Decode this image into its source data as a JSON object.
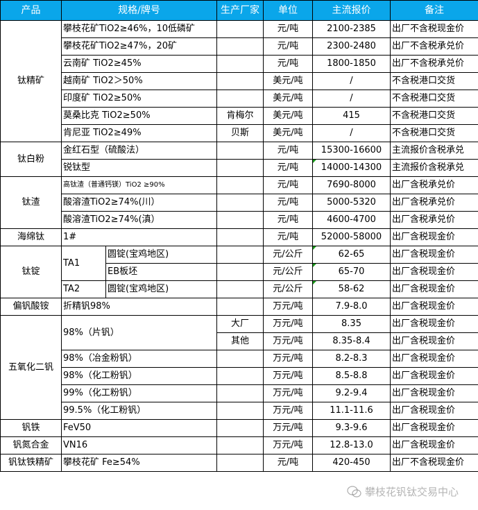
{
  "header": [
    "产品",
    "规格/牌号",
    "生产厂家",
    "单位",
    "主流报价",
    "备注"
  ],
  "header_color": "#0aa6ea",
  "groups": [
    {
      "product": "钛精矿",
      "rows": [
        {
          "spec": "攀枝花矿TiO2≥46%，10低磷矿",
          "maker": "",
          "unit": "元/吨",
          "price": "2100-2385",
          "note": "出厂不含税现金价"
        },
        {
          "spec": "攀枝花矿TiO2≥47%，20矿",
          "maker": "",
          "unit": "元/吨",
          "price": "2300-2480",
          "note": "出厂不含税承兑价"
        },
        {
          "spec": "云南矿 TiO2≥45%",
          "maker": "",
          "unit": "元/吨",
          "price": "1800-1850",
          "note": "出厂不含税承兑价"
        },
        {
          "spec": "越南矿 TiO2＞50%",
          "maker": "",
          "unit": "美元/吨",
          "price": "/",
          "note": "不含税港口交货"
        },
        {
          "spec": "印度矿 TiO2≥50%",
          "maker": "",
          "unit": "美元/吨",
          "price": "/",
          "note": "不含税港口交货"
        },
        {
          "spec": "莫桑比克 TiO2≥50%",
          "maker": "肯梅尔",
          "unit": "美元/吨",
          "price": "415",
          "note": "不含税港口交货"
        },
        {
          "spec": "肯尼亚 TiO2≥49%",
          "maker": "贝斯",
          "unit": "美元/吨",
          "price": "/",
          "note": "不含税港口交货"
        }
      ]
    },
    {
      "product": "钛白粉",
      "rows": [
        {
          "spec": "金红石型（硫酸法）",
          "maker": "",
          "unit": "元/吨",
          "price": "15300-16600",
          "note": "主流报价含税承兑"
        },
        {
          "spec": "锐钛型",
          "maker": "",
          "unit": "元/吨",
          "price": "14000-14300",
          "note": "主流报价含税承兑",
          "mark": true
        }
      ]
    },
    {
      "product": "钛渣",
      "rows": [
        {
          "spec": "高钛渣（普通钙镁）TiO2 ≥90%",
          "small": true,
          "maker": "",
          "unit": "元/吨",
          "price": "7690-8000",
          "note": "出厂含税承兑价"
        },
        {
          "spec": "酸溶渣TiO2≥74%(川）",
          "maker": "",
          "unit": "元/吨",
          "price": "5000-5320",
          "note": "出厂含税承兑价"
        },
        {
          "spec": "酸溶渣TiO2≥74%(滇）",
          "maker": "",
          "unit": "元/吨",
          "price": "4600-4700",
          "note": "出厂含税承兑价"
        }
      ]
    },
    {
      "product": "海绵钛",
      "rows": [
        {
          "spec": "1#",
          "maker": "",
          "unit": "元/吨",
          "price": "52000-58000",
          "note": "出厂含税现金价"
        }
      ]
    },
    {
      "product": "钛锭",
      "rows": [
        {
          "spec": "TA1",
          "sub": "圆锭(宝鸡地区)",
          "maker": "",
          "unit": "元/公斤",
          "price": "62-65",
          "note": "出厂含税现金价",
          "mark": true
        },
        {
          "spec": "TA1",
          "sub": "EB板坯",
          "maker": "",
          "unit": "元/公斤",
          "price": "65-70",
          "note": "出厂含税现金价",
          "mark": true
        },
        {
          "spec": "TA2",
          "sub": "圆锭(宝鸡地区)",
          "maker": "",
          "unit": "元/公斤",
          "price": "58-62",
          "note": "出厂含税现金价",
          "mark": true
        }
      ]
    },
    {
      "product": "偏钒酸铵",
      "rows": [
        {
          "spec": "折精钒98%",
          "maker": "",
          "unit": "万元/吨",
          "price": "7.9-8.0",
          "note": "出厂含税现金价"
        }
      ]
    },
    {
      "product": "五氧化二钒",
      "rows": [
        {
          "spec": "98%（片钒）",
          "maker": "大厂",
          "unit": "万元/吨",
          "price": "8.35",
          "note": "出厂含税现金价"
        },
        {
          "spec": "98%（片钒）",
          "maker": "其他",
          "unit": "万元/吨",
          "price": "8.35-8.4",
          "note": "出厂含税现金价"
        },
        {
          "spec": "98%（冶金粉钒）",
          "maker": "",
          "unit": "万元/吨",
          "price": "8.2-8.3",
          "note": "出厂含税现金价"
        },
        {
          "spec": "98%（化工粉钒）",
          "maker": "",
          "unit": "万元/吨",
          "price": "8.5-8.8",
          "note": "出厂含税现金价"
        },
        {
          "spec": "99%（化工粉钒）",
          "maker": "",
          "unit": "万元/吨",
          "price": "9.2-9.4",
          "note": "出厂含税现金价"
        },
        {
          "spec": "99.5%（化工粉钒）",
          "maker": "",
          "unit": "万元/吨",
          "price": "11.1-11.6",
          "note": "出厂含税现金价"
        }
      ]
    },
    {
      "product": "钒铁",
      "rows": [
        {
          "spec": "FeV50",
          "maker": "",
          "unit": "万元/吨",
          "price": "9.3-9.6",
          "note": "出厂含税现金价"
        }
      ]
    },
    {
      "product": "钒氮合金",
      "rows": [
        {
          "spec": "VN16",
          "maker": "",
          "unit": "万元/吨",
          "price": "12.8-13.0",
          "note": "出厂含税现金价"
        }
      ]
    },
    {
      "product": "钒钛铁精矿",
      "rows": [
        {
          "spec": "攀枝花矿 Fe≥54%",
          "maker": "",
          "unit": "元/吨",
          "price": "420-450",
          "note": "出厂不含税现金价"
        }
      ]
    }
  ],
  "watermark": "攀枝花钒钛交易中心",
  "watermark_icon": "wechat-icon"
}
